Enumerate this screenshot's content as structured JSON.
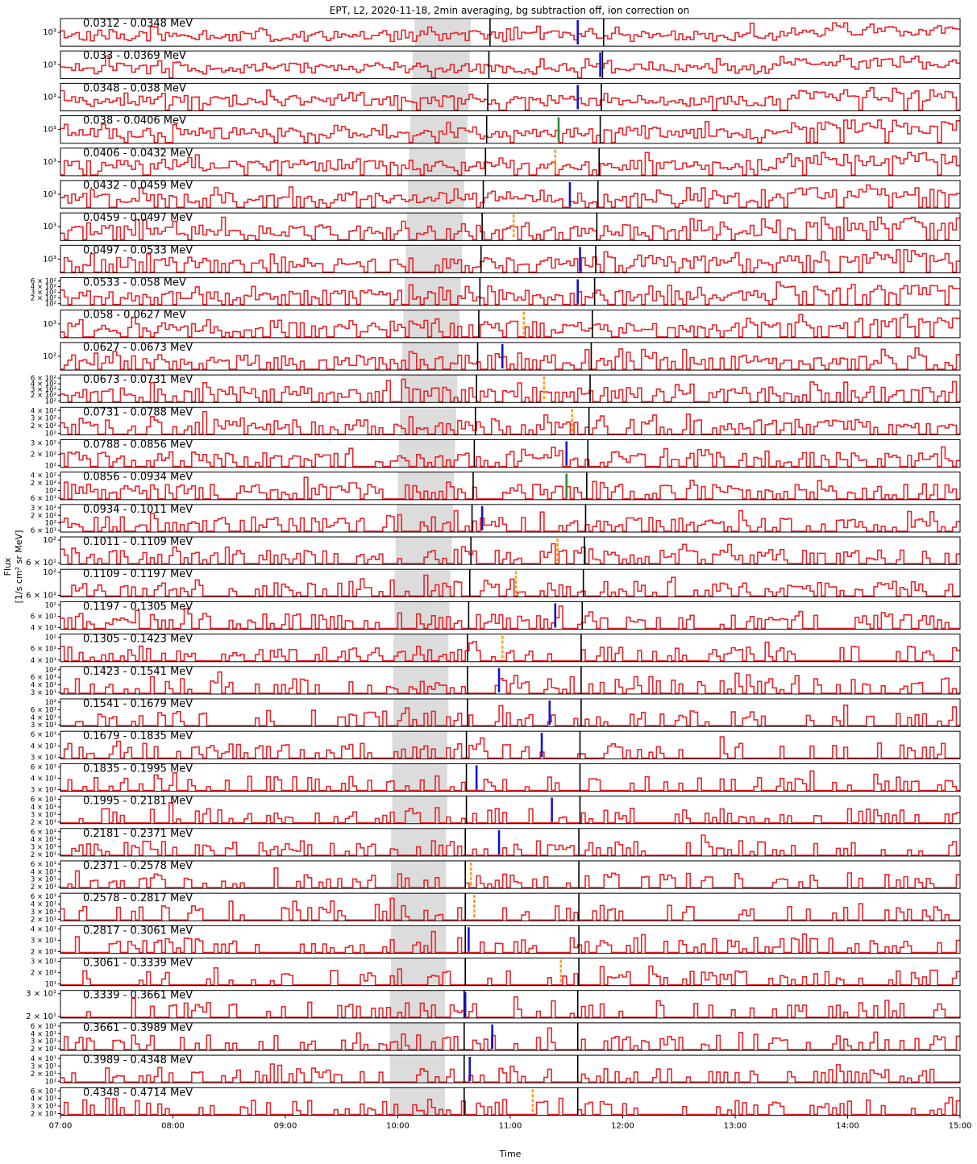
{
  "chart_data": {
    "type": "line",
    "drawstyle": "steps",
    "title": "EPT, L2, 2020-11-18, 2min averaging, bg subtraction off, ion correction on",
    "xlabel": "Time",
    "ylabel_line1": "Flux",
    "ylabel_line2": "[1/s cm² sr MeV]",
    "x_ticks": [
      "07:00",
      "08:00",
      "09:00",
      "10:00",
      "11:00",
      "12:00",
      "13:00",
      "14:00",
      "15:00"
    ],
    "x_range_hours": [
      7,
      15
    ],
    "y_scale": "log",
    "colors": {
      "series": "#e8262b",
      "shade": "#dcdcdc",
      "black_line": "#000000",
      "blue": "#1515c8",
      "orange": "#ff9f1c",
      "green": "#2e8b2e"
    },
    "panels": [
      {
        "label": "0.0312 - 0.0348 MeV",
        "ytick_labels": [
          "10³"
        ],
        "shade": [
          10.15,
          10.65
        ],
        "lines": [
          10.82,
          11.83
        ],
        "marker": {
          "t": 11.6,
          "color": "blue"
        }
      },
      {
        "label": "0.033 - 0.0369 MeV",
        "ytick_labels": [
          "10³"
        ],
        "shade": [
          10.13,
          10.64
        ],
        "lines": [
          10.81,
          11.82
        ],
        "marker": {
          "t": 11.8,
          "color": "blue"
        }
      },
      {
        "label": "0.0348 - 0.038 MeV",
        "ytick_labels": [
          "10³"
        ],
        "shade": [
          10.12,
          10.63
        ],
        "lines": [
          10.8,
          11.81
        ],
        "marker": {
          "t": 11.6,
          "color": "blue"
        }
      },
      {
        "label": "0.038 - 0.0406 MeV",
        "ytick_labels": [
          "10³"
        ],
        "shade": [
          10.11,
          10.62
        ],
        "lines": [
          10.79,
          11.8
        ],
        "marker": {
          "t": 11.43,
          "color": "green"
        }
      },
      {
        "label": "0.0406 - 0.0432 MeV",
        "ytick_labels": [
          "10³"
        ],
        "shade": [
          10.1,
          10.6
        ],
        "lines": [
          10.78,
          11.79
        ],
        "marker": {
          "t": 11.4,
          "color": "orange"
        }
      },
      {
        "label": "0.0432 - 0.0459 MeV",
        "ytick_labels": [
          "10³"
        ],
        "shade": [
          10.09,
          10.59
        ],
        "lines": [
          10.76,
          11.78
        ],
        "marker": {
          "t": 11.53,
          "color": "blue"
        }
      },
      {
        "label": "0.0459 - 0.0497 MeV",
        "ytick_labels": [
          "10³"
        ],
        "shade": [
          10.08,
          10.58
        ],
        "lines": [
          10.75,
          11.77
        ],
        "marker": {
          "t": 11.03,
          "color": "orange"
        }
      },
      {
        "label": "0.0497 - 0.0533 MeV",
        "ytick_labels": [
          "10³"
        ],
        "shade": [
          10.07,
          10.57
        ],
        "lines": [
          10.74,
          11.76
        ],
        "marker": {
          "t": 11.62,
          "color": "blue"
        }
      },
      {
        "label": "0.0533 - 0.058 MeV",
        "ytick_labels": [
          "6 × 10²",
          "4 × 10²",
          "3 × 10²",
          "2 × 10²",
          "10²"
        ],
        "shade": [
          10.06,
          10.56
        ],
        "lines": [
          10.73,
          11.75
        ],
        "marker": {
          "t": 11.6,
          "color": "blue"
        }
      },
      {
        "label": "0.058 - 0.0627 MeV",
        "ytick_labels": [
          "10³"
        ],
        "shade": [
          10.05,
          10.55
        ],
        "lines": [
          10.72,
          11.73
        ],
        "marker": {
          "t": 11.12,
          "color": "orange"
        }
      },
      {
        "label": "0.0627 - 0.0673 MeV",
        "ytick_labels": [
          "10²"
        ],
        "shade": [
          10.04,
          10.54
        ],
        "lines": [
          10.71,
          11.72
        ],
        "marker": {
          "t": 10.93,
          "color": "blue"
        }
      },
      {
        "label": "0.0673 - 0.0731 MeV",
        "ytick_labels": [
          "6 × 10²",
          "4 × 10²",
          "3 × 10²",
          "2 × 10²",
          "10²"
        ],
        "shade": [
          10.03,
          10.53
        ],
        "lines": [
          10.7,
          11.71
        ],
        "marker": {
          "t": 11.3,
          "color": "orange"
        }
      },
      {
        "label": "0.0731 - 0.0788 MeV",
        "ytick_labels": [
          "4 × 10²",
          "3 × 10²",
          "2 × 10²",
          "10²"
        ],
        "shade": [
          10.02,
          10.52
        ],
        "lines": [
          10.69,
          11.7
        ],
        "marker": {
          "t": 11.55,
          "color": "orange"
        }
      },
      {
        "label": "0.0788 - 0.0856 MeV",
        "ytick_labels": [
          "3 × 10²",
          "2 × 10²",
          "10²"
        ],
        "shade": [
          10.01,
          10.51
        ],
        "lines": [
          10.68,
          11.69
        ],
        "marker": {
          "t": 11.5,
          "color": "blue"
        }
      },
      {
        "label": "0.0856 - 0.0934 MeV",
        "ytick_labels": [
          "4 × 10²",
          "2 × 10²",
          "10²",
          "6 × 10¹"
        ],
        "shade": [
          10.0,
          10.5
        ],
        "lines": [
          10.67,
          11.68
        ],
        "marker": {
          "t": 11.5,
          "color": "green"
        }
      },
      {
        "label": "0.0934 - 0.1011 MeV",
        "ytick_labels": [
          "3 × 10²",
          "2 × 10²",
          "10²",
          "6 × 10¹"
        ],
        "shade": [
          9.99,
          10.49
        ],
        "lines": [
          10.66,
          11.67
        ],
        "marker": {
          "t": 10.75,
          "color": "blue"
        }
      },
      {
        "label": "0.1011 - 0.1109 MeV",
        "ytick_labels": [
          "10²",
          "6 × 10¹"
        ],
        "shade": [
          9.98,
          10.48
        ],
        "lines": [
          10.65,
          11.66
        ],
        "marker": {
          "t": 11.42,
          "color": "orange"
        }
      },
      {
        "label": "0.1109 - 0.1197 MeV",
        "ytick_labels": [
          "10²",
          "6 × 10¹"
        ],
        "shade": [
          9.97,
          10.47
        ],
        "lines": [
          10.64,
          11.65
        ],
        "marker": {
          "t": 11.05,
          "color": "orange"
        }
      },
      {
        "label": "0.1197 - 0.1305 MeV",
        "ytick_labels": [
          "10²",
          "6 × 10¹",
          "4 × 10¹"
        ],
        "shade": [
          9.97,
          10.46
        ],
        "lines": [
          10.63,
          11.64
        ],
        "marker": {
          "t": 11.4,
          "color": "blue"
        }
      },
      {
        "label": "0.1305 - 0.1423 MeV",
        "ytick_labels": [
          "10²",
          "6 × 10¹",
          "4 × 10¹"
        ],
        "shade": [
          9.96,
          10.45
        ],
        "lines": [
          10.62,
          11.63
        ],
        "marker": {
          "t": 10.93,
          "color": "orange"
        }
      },
      {
        "label": "0.1423 - 0.1541 MeV",
        "ytick_labels": [
          "10²",
          "6 × 10¹",
          "4 × 10¹",
          "3 × 10¹"
        ],
        "shade": [
          9.96,
          10.45
        ],
        "lines": [
          10.62,
          11.63
        ],
        "marker": {
          "t": 10.9,
          "color": "blue"
        }
      },
      {
        "label": "0.1541 - 0.1679 MeV",
        "ytick_labels": [
          "10²",
          "6 × 10¹",
          "4 × 10¹",
          "3 × 10¹"
        ],
        "shade": [
          9.96,
          10.45
        ],
        "lines": [
          10.62,
          11.63
        ],
        "marker": {
          "t": 11.35,
          "color": "blue"
        }
      },
      {
        "label": "0.1679 - 0.1835 MeV",
        "ytick_labels": [
          "6 × 10¹",
          "4 × 10¹",
          "3 × 10¹"
        ],
        "shade": [
          9.95,
          10.44
        ],
        "lines": [
          10.61,
          11.62
        ],
        "marker": {
          "t": 11.28,
          "color": "blue"
        }
      },
      {
        "label": "0.1835 - 0.1995 MeV",
        "ytick_labels": [
          "6 × 10¹",
          "4 × 10¹",
          "3 × 10¹"
        ],
        "shade": [
          9.95,
          10.44
        ],
        "lines": [
          10.61,
          11.62
        ],
        "marker": {
          "t": 10.7,
          "color": "blue"
        }
      },
      {
        "label": "0.1995 - 0.2181 MeV",
        "ytick_labels": [
          "6 × 10¹",
          "4 × 10¹",
          "3 × 10¹",
          "2 × 10¹"
        ],
        "shade": [
          9.95,
          10.44
        ],
        "lines": [
          10.61,
          11.62
        ],
        "marker": {
          "t": 11.37,
          "color": "blue"
        }
      },
      {
        "label": "0.2181 - 0.2371 MeV",
        "ytick_labels": [
          "6 × 10¹",
          "4 × 10¹",
          "3 × 10¹",
          "2 × 10¹"
        ],
        "shade": [
          9.94,
          10.43
        ],
        "lines": [
          10.6,
          11.61
        ],
        "marker": {
          "t": 10.9,
          "color": "blue"
        }
      },
      {
        "label": "0.2371 - 0.2578 MeV",
        "ytick_labels": [
          "6 × 10¹",
          "4 × 10¹",
          "3 × 10¹",
          "2 × 10¹"
        ],
        "shade": [
          9.94,
          10.43
        ],
        "lines": [
          10.6,
          11.61
        ],
        "marker": {
          "t": 10.65,
          "color": "orange"
        }
      },
      {
        "label": "0.2578 - 0.2817 MeV",
        "ytick_labels": [
          "6 × 10¹",
          "4 × 10¹",
          "3 × 10¹",
          "2 × 10¹"
        ],
        "shade": [
          9.94,
          10.43
        ],
        "lines": [
          10.6,
          11.61
        ],
        "marker": {
          "t": 10.68,
          "color": "orange"
        }
      },
      {
        "label": "0.2817 - 0.3061 MeV",
        "ytick_labels": [
          "4 × 10¹",
          "3 × 10¹",
          "2 × 10¹"
        ],
        "shade": [
          9.94,
          10.43
        ],
        "lines": [
          10.6,
          11.61
        ],
        "marker": {
          "t": 10.63,
          "color": "blue"
        }
      },
      {
        "label": "0.3061 - 0.3339 MeV",
        "ytick_labels": [
          "3 × 10¹",
          "2 × 10¹",
          "10¹"
        ],
        "shade": [
          9.94,
          10.43
        ],
        "lines": [
          10.6,
          11.61
        ],
        "marker": {
          "t": 11.45,
          "color": "orange"
        }
      },
      {
        "label": "0.3339 - 0.3661 MeV",
        "ytick_labels": [
          "3 × 10¹",
          "2 × 10¹"
        ],
        "shade": [
          9.93,
          10.42
        ],
        "lines": [
          10.59,
          11.6
        ],
        "marker": {
          "t": 10.6,
          "color": "blue"
        }
      },
      {
        "label": "0.3661 - 0.3989 MeV",
        "ytick_labels": [
          "6 × 10¹",
          "4 × 10¹",
          "3 × 10¹",
          "2 × 10¹"
        ],
        "shade": [
          9.93,
          10.42
        ],
        "lines": [
          10.59,
          11.6
        ],
        "marker": {
          "t": 10.84,
          "color": "blue"
        }
      },
      {
        "label": "0.3989 - 0.4348 MeV",
        "ytick_labels": [
          "4 × 10¹",
          "3 × 10¹",
          "2 × 10¹",
          "10¹"
        ],
        "shade": [
          9.93,
          10.42
        ],
        "lines": [
          10.59,
          11.6
        ],
        "marker": {
          "t": 10.64,
          "color": "blue"
        }
      },
      {
        "label": "0.4348 - 0.4714 MeV",
        "ytick_labels": [
          "6 × 10¹",
          "4 × 10¹",
          "3 × 10¹",
          "2 × 10¹"
        ],
        "shade": [
          9.93,
          10.42
        ],
        "lines": [
          10.59,
          11.6
        ],
        "marker": {
          "t": 11.2,
          "color": "orange"
        }
      }
    ]
  }
}
